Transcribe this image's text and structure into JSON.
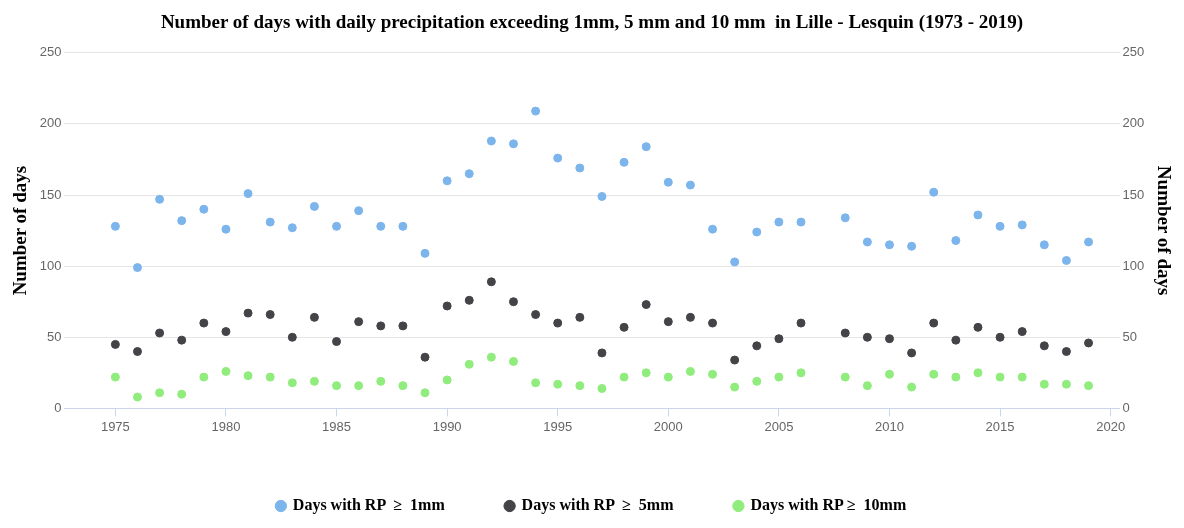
{
  "chart_data": {
    "type": "scatter",
    "title": "Number of days with daily precipitation exceeding 1mm, 5 mm and 10 mm  in Lille - Lesquin (1973 - 2019)",
    "ylabel": "Number of days",
    "y2label": "Number of days",
    "x": [
      1975,
      1976,
      1977,
      1978,
      1979,
      1980,
      1981,
      1982,
      1983,
      1984,
      1985,
      1986,
      1987,
      1988,
      1989,
      1990,
      1991,
      1992,
      1993,
      1994,
      1995,
      1996,
      1997,
      1998,
      1999,
      2000,
      2001,
      2002,
      2003,
      2004,
      2005,
      2006,
      2007,
      2008,
      2009,
      2010,
      2011,
      2012,
      2013,
      2014,
      2015,
      2016,
      2017,
      2018,
      2019
    ],
    "series": [
      {
        "name": "Days with RP  ≥  1mm",
        "color": "#7cb5ec",
        "values": [
          128,
          99,
          147,
          132,
          140,
          126,
          151,
          131,
          127,
          142,
          128,
          139,
          128,
          128,
          109,
          160,
          165,
          188,
          186,
          209,
          176,
          169,
          149,
          173,
          184,
          159,
          157,
          126,
          103,
          124,
          131,
          131,
          null,
          134,
          117,
          115,
          114,
          152,
          118,
          136,
          128,
          129,
          115,
          104,
          117
        ]
      },
      {
        "name": "Days with RP  ≥  5mm",
        "color": "#434348",
        "values": [
          45,
          40,
          53,
          48,
          60,
          54,
          67,
          66,
          50,
          64,
          47,
          61,
          58,
          58,
          36,
          72,
          76,
          89,
          75,
          66,
          60,
          64,
          39,
          57,
          73,
          61,
          64,
          60,
          34,
          44,
          49,
          60,
          null,
          53,
          50,
          49,
          39,
          60,
          48,
          57,
          50,
          54,
          44,
          40,
          46
        ]
      },
      {
        "name": "Days with RP ≥  10mm",
        "color": "#90ed7d",
        "values": [
          22,
          8,
          11,
          10,
          22,
          26,
          23,
          22,
          18,
          19,
          16,
          16,
          19,
          16,
          11,
          20,
          31,
          36,
          33,
          18,
          17,
          16,
          14,
          22,
          25,
          22,
          26,
          24,
          15,
          19,
          22,
          25,
          null,
          22,
          16,
          24,
          15,
          24,
          22,
          25,
          22,
          22,
          17,
          17,
          16
        ]
      }
    ],
    "xlim": [
      1972.7,
      2020.4
    ],
    "xticks": [
      1975,
      1980,
      1985,
      1990,
      1995,
      2000,
      2005,
      2010,
      2015,
      2020
    ],
    "ylim": [
      0,
      250
    ],
    "yticks": [
      0,
      50,
      100,
      150,
      200,
      250
    ],
    "y2lim": [
      0,
      250
    ],
    "y2ticks": [
      0,
      50,
      100,
      150,
      200,
      250
    ],
    "grid": "y",
    "legend": "bottom",
    "marker": "circle"
  }
}
